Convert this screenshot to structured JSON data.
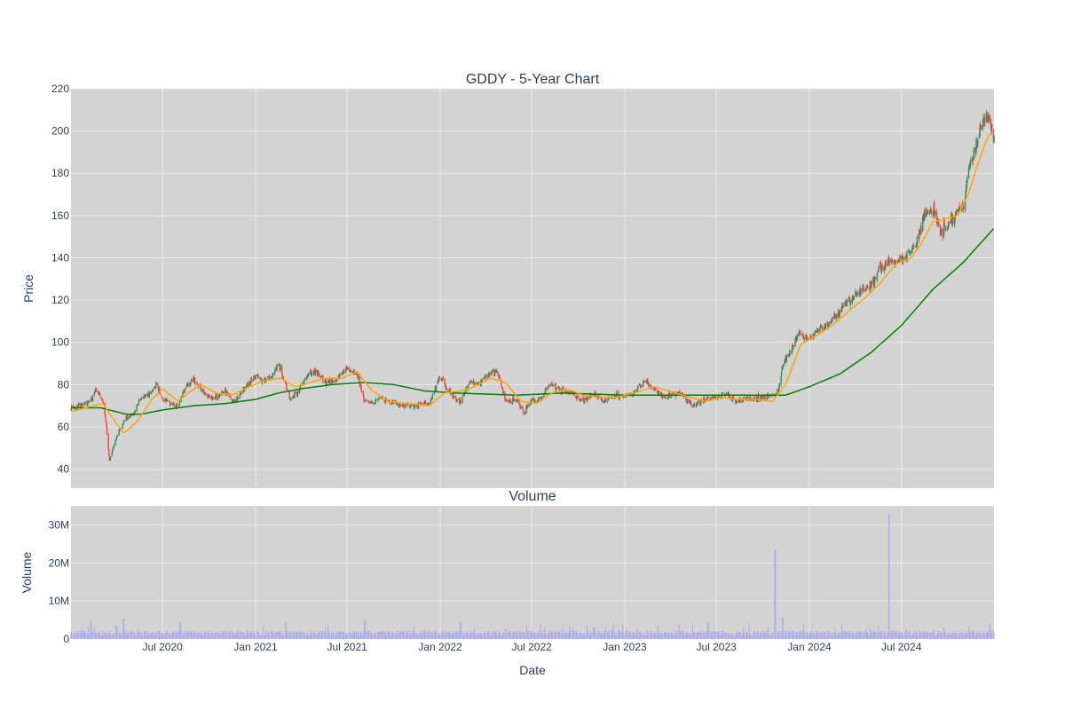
{
  "chart_data": [
    {
      "type": "candlestick",
      "title": "GDDY - 5-Year Chart",
      "xlabel": "",
      "ylabel": "Price",
      "ylim": [
        31,
        220
      ],
      "yticks": [
        40,
        60,
        80,
        100,
        120,
        140,
        160,
        180,
        200,
        220
      ],
      "x_range": [
        "2020-01-02",
        "2024-12-31"
      ],
      "xticks": [
        "2020-07-01",
        "2021-01-01",
        "2021-07-01",
        "2022-01-01",
        "2022-07-01",
        "2023-01-01",
        "2023-07-01",
        "2024-01-01",
        "2024-07-01"
      ],
      "plot_background": "#d3d3d3",
      "grid": true,
      "legend": "none",
      "colors": {
        "increasing": "#2e8b57",
        "decreasing": "#ff4136",
        "ma_short": "#ffa500",
        "ma_long": "#008000"
      },
      "ohlc_close_keypoints": [
        [
          "2020-01-02",
          69
        ],
        [
          "2020-01-20",
          70
        ],
        [
          "2020-02-10",
          72
        ],
        [
          "2020-02-20",
          78
        ],
        [
          "2020-03-05",
          72
        ],
        [
          "2020-03-12",
          60
        ],
        [
          "2020-03-18",
          44
        ],
        [
          "2020-03-25",
          50
        ],
        [
          "2020-04-05",
          58
        ],
        [
          "2020-04-20",
          64
        ],
        [
          "2020-05-05",
          66
        ],
        [
          "2020-05-15",
          72
        ],
        [
          "2020-06-05",
          76
        ],
        [
          "2020-06-20",
          80
        ],
        [
          "2020-07-01",
          73
        ],
        [
          "2020-07-15",
          71
        ],
        [
          "2020-08-01",
          70
        ],
        [
          "2020-08-15",
          79
        ],
        [
          "2020-09-01",
          82
        ],
        [
          "2020-09-20",
          76
        ],
        [
          "2020-10-10",
          73
        ],
        [
          "2020-11-01",
          77
        ],
        [
          "2020-11-20",
          72
        ],
        [
          "2020-12-15",
          80
        ],
        [
          "2020-12-28",
          84
        ],
        [
          "2021-01-15",
          82
        ],
        [
          "2021-02-01",
          83
        ],
        [
          "2021-02-15",
          90
        ],
        [
          "2021-03-01",
          80
        ],
        [
          "2021-03-10",
          74
        ],
        [
          "2021-03-25",
          76
        ],
        [
          "2021-04-15",
          85
        ],
        [
          "2021-05-01",
          86
        ],
        [
          "2021-05-20",
          81
        ],
        [
          "2021-06-10",
          82
        ],
        [
          "2021-07-01",
          88
        ],
        [
          "2021-07-20",
          85
        ],
        [
          "2021-08-05",
          72
        ],
        [
          "2021-08-20",
          71
        ],
        [
          "2021-09-05",
          74
        ],
        [
          "2021-10-01",
          71
        ],
        [
          "2021-11-01",
          70
        ],
        [
          "2021-11-20",
          70
        ],
        [
          "2021-12-10",
          71
        ],
        [
          "2022-01-01",
          84
        ],
        [
          "2022-01-20",
          76
        ],
        [
          "2022-02-10",
          72
        ],
        [
          "2022-03-01",
          82
        ],
        [
          "2022-03-20",
          80
        ],
        [
          "2022-04-05",
          85
        ],
        [
          "2022-04-25",
          86
        ],
        [
          "2022-05-10",
          72
        ],
        [
          "2022-06-01",
          73
        ],
        [
          "2022-06-15",
          67
        ],
        [
          "2022-07-01",
          72
        ],
        [
          "2022-07-20",
          73
        ],
        [
          "2022-08-05",
          80
        ],
        [
          "2022-08-25",
          78
        ],
        [
          "2022-09-15",
          76
        ],
        [
          "2022-10-10",
          72
        ],
        [
          "2022-11-01",
          76
        ],
        [
          "2022-11-20",
          72
        ],
        [
          "2022-12-15",
          75
        ],
        [
          "2023-01-01",
          74
        ],
        [
          "2023-01-20",
          76
        ],
        [
          "2023-02-10",
          82
        ],
        [
          "2023-03-01",
          78
        ],
        [
          "2023-03-20",
          74
        ],
        [
          "2023-04-20",
          76
        ],
        [
          "2023-05-15",
          70
        ],
        [
          "2023-06-10",
          73
        ],
        [
          "2023-07-01",
          74
        ],
        [
          "2023-07-20",
          76
        ],
        [
          "2023-08-10",
          72
        ],
        [
          "2023-09-01",
          73
        ],
        [
          "2023-10-01",
          74
        ],
        [
          "2023-10-25",
          75
        ],
        [
          "2023-11-01",
          78
        ],
        [
          "2023-11-10",
          90
        ],
        [
          "2023-11-25",
          96
        ],
        [
          "2023-12-10",
          104
        ],
        [
          "2024-01-01",
          101
        ],
        [
          "2024-01-20",
          106
        ],
        [
          "2024-02-10",
          110
        ],
        [
          "2024-03-01",
          115
        ],
        [
          "2024-03-20",
          120
        ],
        [
          "2024-04-10",
          124
        ],
        [
          "2024-05-01",
          126
        ],
        [
          "2024-05-20",
          135
        ],
        [
          "2024-06-10",
          139
        ],
        [
          "2024-06-25",
          138
        ],
        [
          "2024-07-15",
          142
        ],
        [
          "2024-08-01",
          148
        ],
        [
          "2024-08-15",
          160
        ],
        [
          "2024-09-01",
          164
        ],
        [
          "2024-09-15",
          152
        ],
        [
          "2024-10-01",
          155
        ],
        [
          "2024-10-20",
          162
        ],
        [
          "2024-11-01",
          164
        ],
        [
          "2024-11-10",
          182
        ],
        [
          "2024-11-25",
          192
        ],
        [
          "2024-12-05",
          202
        ],
        [
          "2024-12-20",
          206
        ],
        [
          "2024-12-31",
          198
        ]
      ],
      "moving_average_short_keypoints": [
        [
          "2020-01-02",
          67
        ],
        [
          "2020-02-15",
          70
        ],
        [
          "2020-03-05",
          71
        ],
        [
          "2020-03-25",
          64
        ],
        [
          "2020-04-15",
          57
        ],
        [
          "2020-05-10",
          62
        ],
        [
          "2020-06-10",
          73
        ],
        [
          "2020-07-01",
          78
        ],
        [
          "2020-08-01",
          72
        ],
        [
          "2020-08-20",
          76
        ],
        [
          "2020-09-15",
          80
        ],
        [
          "2020-10-15",
          76
        ],
        [
          "2020-11-15",
          75
        ],
        [
          "2020-12-20",
          79
        ],
        [
          "2021-01-20",
          82
        ],
        [
          "2021-02-20",
          83
        ],
        [
          "2021-03-20",
          79
        ],
        [
          "2021-04-20",
          81
        ],
        [
          "2021-05-15",
          83
        ],
        [
          "2021-06-20",
          83
        ],
        [
          "2021-07-20",
          86
        ],
        [
          "2021-08-20",
          77
        ],
        [
          "2021-09-20",
          72
        ],
        [
          "2021-11-01",
          71
        ],
        [
          "2021-12-10",
          70
        ],
        [
          "2022-01-10",
          76
        ],
        [
          "2022-02-10",
          77
        ],
        [
          "2022-03-10",
          79
        ],
        [
          "2022-04-10",
          83
        ],
        [
          "2022-05-10",
          81
        ],
        [
          "2022-06-10",
          72
        ],
        [
          "2022-07-10",
          71
        ],
        [
          "2022-08-10",
          76
        ],
        [
          "2022-09-10",
          78
        ],
        [
          "2022-10-10",
          75
        ],
        [
          "2022-11-15",
          74
        ],
        [
          "2022-12-15",
          74
        ],
        [
          "2023-01-20",
          76
        ],
        [
          "2023-03-01",
          79
        ],
        [
          "2023-04-10",
          76
        ],
        [
          "2023-05-10",
          74
        ],
        [
          "2023-06-10",
          72
        ],
        [
          "2023-07-10",
          74
        ],
        [
          "2023-08-10",
          73
        ],
        [
          "2023-09-15",
          73
        ],
        [
          "2023-10-20",
          72
        ],
        [
          "2023-11-15",
          80
        ],
        [
          "2023-12-15",
          99
        ],
        [
          "2024-01-20",
          104
        ],
        [
          "2024-02-20",
          109
        ],
        [
          "2024-03-20",
          115
        ],
        [
          "2024-04-20",
          121
        ],
        [
          "2024-05-20",
          128
        ],
        [
          "2024-06-20",
          137
        ],
        [
          "2024-07-20",
          140
        ],
        [
          "2024-08-10",
          147
        ],
        [
          "2024-09-01",
          157
        ],
        [
          "2024-09-20",
          158
        ],
        [
          "2024-10-20",
          160
        ],
        [
          "2024-11-10",
          170
        ],
        [
          "2024-11-30",
          185
        ],
        [
          "2024-12-20",
          198
        ],
        [
          "2024-12-31",
          199
        ]
      ],
      "moving_average_long_keypoints": [
        [
          "2020-01-02",
          69
        ],
        [
          "2020-03-01",
          69
        ],
        [
          "2020-04-20",
          66
        ],
        [
          "2020-05-20",
          66
        ],
        [
          "2020-07-01",
          68
        ],
        [
          "2020-09-01",
          70
        ],
        [
          "2020-11-01",
          71
        ],
        [
          "2021-01-01",
          73
        ],
        [
          "2021-02-15",
          76
        ],
        [
          "2021-04-01",
          78
        ],
        [
          "2021-06-01",
          80
        ],
        [
          "2021-08-01",
          81
        ],
        [
          "2021-10-01",
          80
        ],
        [
          "2021-12-01",
          77
        ],
        [
          "2022-02-01",
          76
        ],
        [
          "2022-06-01",
          75
        ],
        [
          "2022-09-01",
          76
        ],
        [
          "2023-01-01",
          75
        ],
        [
          "2023-05-01",
          75
        ],
        [
          "2023-09-01",
          75
        ],
        [
          "2023-11-15",
          75
        ],
        [
          "2024-01-01",
          79
        ],
        [
          "2024-03-01",
          85
        ],
        [
          "2024-05-01",
          95
        ],
        [
          "2024-07-01",
          108
        ],
        [
          "2024-09-01",
          125
        ],
        [
          "2024-11-01",
          138
        ],
        [
          "2024-12-31",
          154
        ]
      ]
    },
    {
      "type": "bar",
      "title": "Volume",
      "xlabel": "Date",
      "ylabel": "Volume",
      "ylim": [
        0,
        35000000
      ],
      "yticks": [
        0,
        10000000,
        20000000,
        30000000
      ],
      "ytick_labels": [
        "0",
        "10M",
        "20M",
        "30M"
      ],
      "x_range": [
        "2020-01-02",
        "2024-12-31"
      ],
      "xticks": [
        "2020-07-01",
        "2021-01-01",
        "2021-07-01",
        "2022-01-01",
        "2022-07-01",
        "2023-01-01",
        "2023-07-01",
        "2024-01-01",
        "2024-07-01"
      ],
      "xtick_labels": [
        "Jul 2020",
        "Jan 2021",
        "Jul 2021",
        "Jan 2022",
        "Jul 2022",
        "Jan 2023",
        "Jul 2023",
        "Jan 2024",
        "Jul 2024"
      ],
      "plot_background": "#d3d3d3",
      "bar_color": "#b0b0e8",
      "baseline_volume": 1500000,
      "notable_volumes": [
        [
          "2020-02-10",
          5000000
        ],
        [
          "2020-04-01",
          3500000
        ],
        [
          "2020-04-15",
          5200000
        ],
        [
          "2020-08-05",
          4500000
        ],
        [
          "2021-03-01",
          4500000
        ],
        [
          "2021-08-05",
          5000000
        ],
        [
          "2022-02-10",
          4500000
        ],
        [
          "2022-11-01",
          3000000
        ],
        [
          "2023-06-15",
          4500000
        ],
        [
          "2023-10-25",
          23500000
        ],
        [
          "2023-11-10",
          5500000
        ],
        [
          "2024-06-07",
          33000000
        ],
        [
          "2024-07-10",
          2500000
        ]
      ]
    }
  ]
}
